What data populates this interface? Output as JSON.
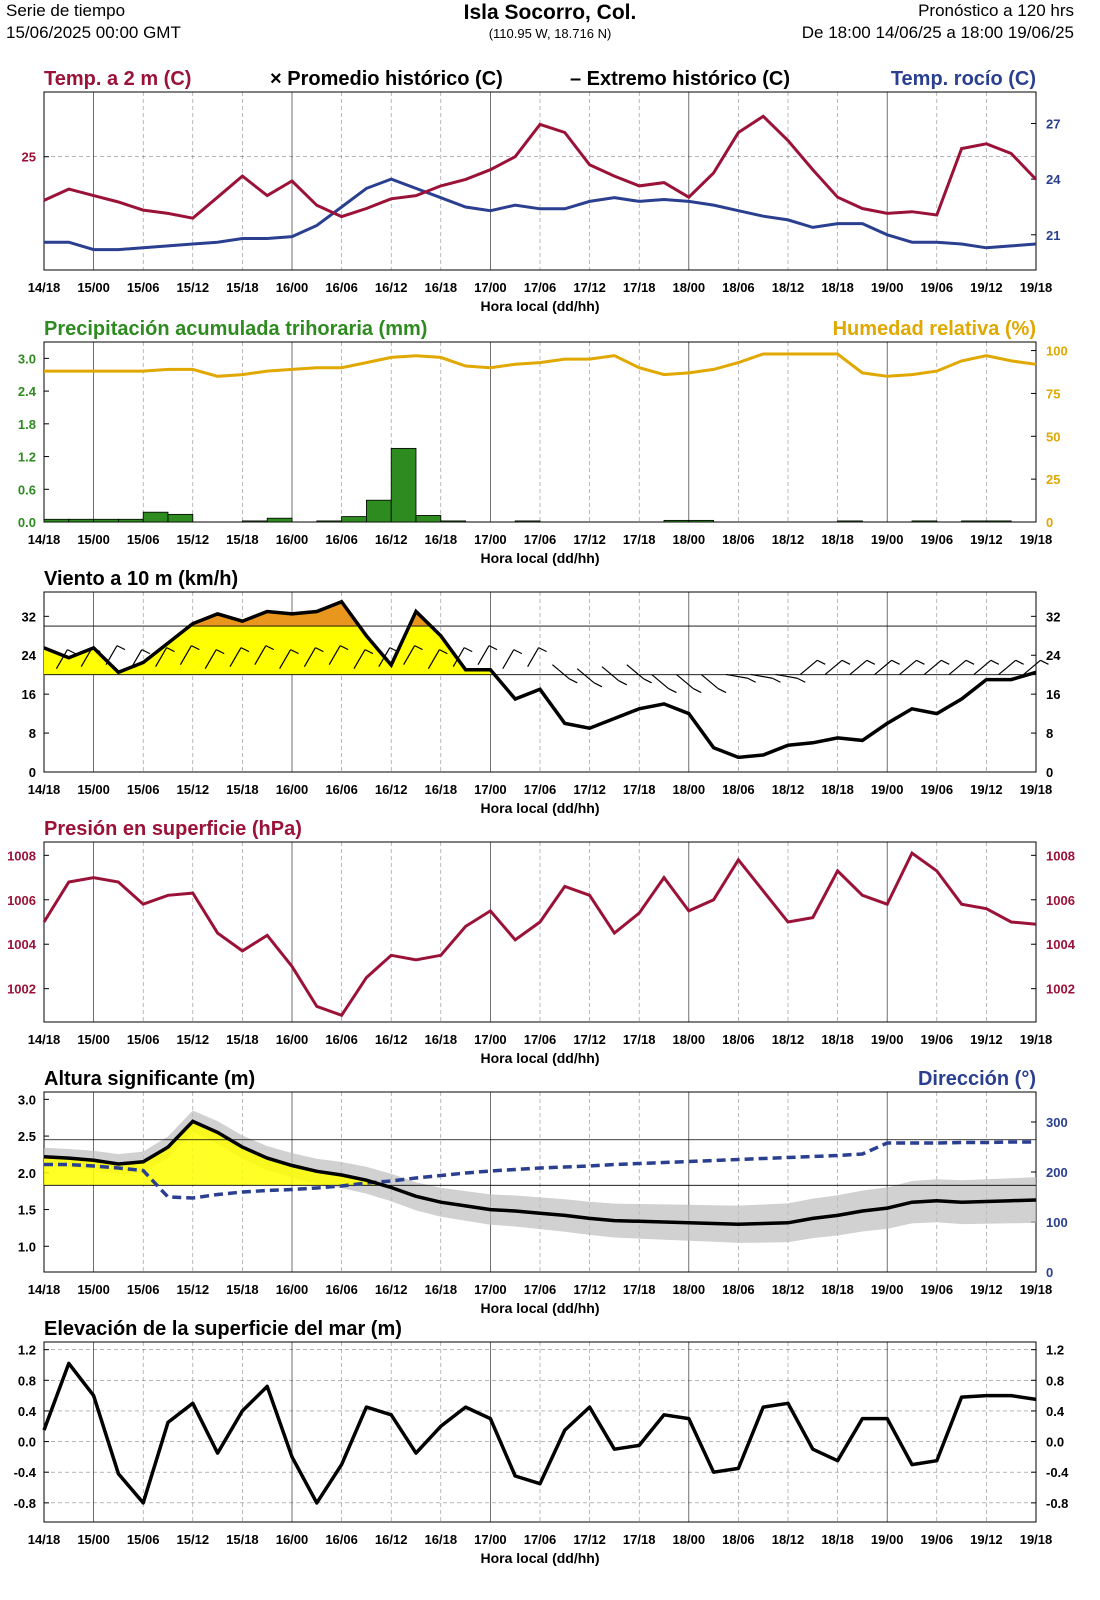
{
  "header": {
    "left_line1": "Serie de tiempo",
    "left_line2": "15/06/2025 00:00 GMT",
    "title": "Isla Socorro,  Col.",
    "coords": "(110.95 W, 18.716 N)",
    "right_line1": "Pronóstico a 120 hrs",
    "right_line2": "De 18:00 14/06/25 a 18:00 19/06/25"
  },
  "x_ticks": [
    "14/18",
    "15/00",
    "15/06",
    "15/12",
    "15/18",
    "16/00",
    "16/06",
    "16/12",
    "16/18",
    "17/00",
    "17/06",
    "17/12",
    "17/18",
    "18/00",
    "18/06",
    "18/12",
    "18/18",
    "19/00",
    "19/06",
    "19/12",
    "19/18"
  ],
  "x_label": "Hora local (dd/hh)",
  "colors": {
    "temp": "#9b1238",
    "dew": "#2a3f8f",
    "precip": "#2e8b1f",
    "rh": "#e0a800",
    "pressure": "#9b1238",
    "wave": "#000000",
    "dir": "#2a3f8f",
    "wind_fill_low": "#ffff00",
    "wind_fill_high": "#e8961e"
  },
  "chart_data": [
    {
      "id": "temp",
      "type": "line",
      "title_left": "Temp. a 2 m (C)",
      "legend_mid1": "Promedio histórico (C)",
      "legend_mid2": "Extremo histórico (C)",
      "title_right": "Temp. rocío (C)",
      "y_left_ticks": [
        "25"
      ],
      "y_right_ticks": [
        "27",
        "24",
        "21"
      ],
      "ylim": [
        18,
        29
      ],
      "x_hours": [
        0,
        3,
        6,
        9,
        12,
        15,
        18,
        21,
        24,
        27,
        30,
        33,
        36,
        39,
        42,
        45,
        48,
        51,
        54,
        57,
        60,
        63,
        66,
        69,
        72,
        75,
        78,
        81,
        84,
        87,
        90,
        93,
        96,
        99,
        102,
        105,
        108,
        111,
        114,
        117,
        120
      ],
      "series": [
        {
          "name": "Temp. a 2 m (C)",
          "values": [
            22.3,
            23.0,
            22.6,
            22.2,
            21.7,
            21.5,
            21.2,
            22.5,
            23.8,
            22.6,
            23.5,
            22.0,
            21.3,
            21.8,
            22.4,
            22.6,
            23.2,
            23.6,
            24.2,
            25.0,
            27.0,
            26.5,
            24.5,
            23.8,
            23.2,
            23.4,
            22.5,
            24.0,
            26.5,
            27.5,
            26.0,
            24.2,
            22.5,
            21.8,
            21.5,
            21.6,
            21.4,
            25.5,
            25.8,
            25.2,
            23.6
          ]
        },
        {
          "name": "Temp. rocío (C)",
          "values": [
            20.6,
            20.6,
            20.2,
            20.2,
            20.3,
            20.4,
            20.5,
            20.6,
            20.8,
            20.8,
            20.9,
            21.5,
            22.5,
            23.5,
            24.0,
            23.5,
            23.0,
            22.5,
            22.3,
            22.6,
            22.4,
            22.4,
            22.8,
            23.0,
            22.8,
            22.9,
            22.8,
            22.6,
            22.3,
            22.0,
            21.8,
            21.4,
            21.6,
            21.6,
            21.0,
            20.6,
            20.6,
            20.5,
            20.3,
            20.4,
            20.5
          ]
        }
      ]
    },
    {
      "id": "precip",
      "type": "bar",
      "title_left": "Precipitación acumulada trihoraria (mm)",
      "title_right": "Humedad relativa (%)",
      "y_left_ticks": [
        "3.0",
        "2.4",
        "1.8",
        "1.2",
        "0.6",
        "0.0"
      ],
      "y_right_ticks": [
        "100",
        "75",
        "50",
        "25",
        "0"
      ],
      "ylim": [
        0,
        3.3
      ],
      "y_right_lim": [
        0,
        100
      ],
      "bar_hours": [
        1.5,
        4.5,
        7.5,
        10.5,
        13.5,
        16.5,
        19.5,
        22.5,
        25.5,
        28.5,
        31.5,
        34.5,
        37.5,
        40.5,
        43.5,
        46.5,
        49.5,
        52.5,
        55.5,
        58.5,
        61.5,
        64.5,
        67.5,
        70.5,
        73.5,
        76.5,
        79.5,
        82.5,
        85.5,
        88.5,
        91.5,
        94.5,
        97.5,
        100.5,
        103.5,
        106.5,
        109.5,
        112.5,
        115.5,
        118.5
      ],
      "series": [
        {
          "name": "Precipitación acumulada trihoraria (mm)",
          "values": [
            0.05,
            0.05,
            0.05,
            0.05,
            0.18,
            0.14,
            0.0,
            0.0,
            0.02,
            0.07,
            0.0,
            0.02,
            0.1,
            0.4,
            1.35,
            0.12,
            0.02,
            0.0,
            0.0,
            0.02,
            0.0,
            0.0,
            0.0,
            0.0,
            0.0,
            0.03,
            0.03,
            0.0,
            0.0,
            0.0,
            0.0,
            0.0,
            0.02,
            0.0,
            0.0,
            0.02,
            0.0,
            0.02,
            0.02,
            0.0
          ]
        },
        {
          "name": "Humedad relativa (%)",
          "x_hours": [
            0,
            3,
            6,
            9,
            12,
            15,
            18,
            21,
            24,
            27,
            30,
            33,
            36,
            39,
            42,
            45,
            48,
            51,
            54,
            57,
            60,
            63,
            66,
            69,
            72,
            75,
            78,
            81,
            84,
            87,
            90,
            93,
            96,
            99,
            102,
            105,
            108,
            111,
            114,
            117,
            120
          ],
          "values": [
            88,
            88,
            88,
            88,
            88,
            89,
            89,
            85,
            86,
            88,
            89,
            90,
            90,
            93,
            96,
            97,
            96,
            91,
            90,
            92,
            93,
            95,
            95,
            97,
            90,
            86,
            87,
            89,
            93,
            98,
            98,
            98,
            98,
            87,
            85,
            86,
            88,
            94,
            97,
            94,
            92
          ]
        }
      ]
    },
    {
      "id": "wind",
      "type": "line",
      "title_left": "Viento a 10 m (km/h)",
      "y_ticks": [
        "32",
        "24",
        "16",
        "8",
        "0"
      ],
      "ylim": [
        0,
        37
      ],
      "thresholds": [
        20,
        30
      ],
      "x_hours": [
        0,
        3,
        6,
        9,
        12,
        15,
        18,
        21,
        24,
        27,
        30,
        33,
        36,
        39,
        42,
        45,
        48,
        51,
        54,
        57,
        60,
        63,
        66,
        69,
        72,
        75,
        78,
        81,
        84,
        87,
        90,
        93,
        96,
        99,
        102,
        105,
        108,
        111,
        114,
        117,
        120
      ],
      "series": [
        {
          "name": "Viento a 10 m (km/h)",
          "values": [
            25.5,
            23.5,
            25.5,
            20.5,
            22.5,
            26.5,
            30.5,
            32.5,
            31,
            33,
            32.5,
            33,
            35,
            28,
            22,
            33,
            28,
            21,
            21,
            15,
            17,
            10,
            9,
            11,
            13,
            14,
            12,
            5,
            3,
            3.5,
            5.5,
            6,
            7,
            6.5,
            10,
            13,
            12,
            15,
            19,
            19,
            20.5
          ]
        }
      ]
    },
    {
      "id": "pressure",
      "type": "line",
      "title_left": "Presión en superficie (hPa)",
      "y_ticks": [
        "1008",
        "1006",
        "1004",
        "1002"
      ],
      "ylim": [
        1000.5,
        1008.6
      ],
      "x_hours": [
        0,
        3,
        6,
        9,
        12,
        15,
        18,
        21,
        24,
        27,
        30,
        33,
        36,
        39,
        42,
        45,
        48,
        51,
        54,
        57,
        60,
        63,
        66,
        69,
        72,
        75,
        78,
        81,
        84,
        87,
        90,
        93,
        96,
        99,
        102,
        105,
        108,
        111,
        114,
        117,
        120
      ],
      "series": [
        {
          "name": "Presión en superficie (hPa)",
          "values": [
            1005,
            1006.8,
            1007,
            1006.8,
            1005.8,
            1006.2,
            1006.3,
            1004.5,
            1003.7,
            1004.4,
            1003,
            1001.2,
            1000.8,
            1002.5,
            1003.5,
            1003.3,
            1003.5,
            1004.8,
            1005.5,
            1004.2,
            1005,
            1006.6,
            1006.2,
            1004.5,
            1005.4,
            1007,
            1005.5,
            1006,
            1007.8,
            1006.4,
            1005,
            1005.2,
            1007.3,
            1006.2,
            1005.8,
            1008.1,
            1007.3,
            1005.8,
            1005.6,
            1005,
            1004.9
          ]
        }
      ]
    },
    {
      "id": "wave",
      "type": "area",
      "title_left": "Altura significante (m)",
      "title_right": "Dirección (°)",
      "y_left_ticks": [
        "3.0",
        "2.5",
        "2.0",
        "1.5",
        "1.0"
      ],
      "y_right_ticks": [
        "300",
        "200",
        "100",
        "0"
      ],
      "ylim": [
        0.65,
        3.1
      ],
      "y_right_lim": [
        0,
        360
      ],
      "thresholds": [
        1.83,
        2.45
      ],
      "x_hours": [
        0,
        3,
        6,
        9,
        12,
        15,
        18,
        21,
        24,
        27,
        30,
        33,
        36,
        39,
        42,
        45,
        48,
        51,
        54,
        57,
        60,
        63,
        66,
        69,
        72,
        75,
        78,
        81,
        84,
        87,
        90,
        93,
        96,
        99,
        102,
        105,
        108,
        111,
        114,
        117,
        120
      ],
      "series": [
        {
          "name": "Altura significante (m)",
          "values": [
            2.22,
            2.2,
            2.17,
            2.12,
            2.15,
            2.35,
            2.7,
            2.55,
            2.35,
            2.2,
            2.1,
            2.02,
            1.97,
            1.9,
            1.8,
            1.68,
            1.6,
            1.55,
            1.5,
            1.48,
            1.45,
            1.42,
            1.38,
            1.35,
            1.34,
            1.33,
            1.32,
            1.31,
            1.3,
            1.31,
            1.32,
            1.38,
            1.42,
            1.48,
            1.52,
            1.6,
            1.62,
            1.6,
            1.61,
            1.62,
            1.63
          ]
        },
        {
          "name": "Dirección (°)",
          "values": [
            215,
            215,
            212,
            208,
            203,
            150,
            148,
            155,
            160,
            163,
            165,
            168,
            172,
            178,
            182,
            188,
            193,
            198,
            202,
            205,
            208,
            210,
            212,
            215,
            217,
            219,
            221,
            223,
            225,
            227,
            229,
            231,
            233,
            236,
            258,
            258,
            258,
            259,
            259,
            260,
            260
          ]
        }
      ]
    },
    {
      "id": "ssh",
      "type": "line",
      "title_left": "Elevación de la superficie del mar (m)",
      "y_ticks": [
        "1.2",
        "0.8",
        "0.4",
        "0.0",
        "-0.4",
        "-0.8"
      ],
      "ylim": [
        -1.05,
        1.3
      ],
      "x_hours": [
        0,
        3,
        6,
        9,
        12,
        15,
        18,
        21,
        24,
        27,
        30,
        33,
        36,
        39,
        42,
        45,
        48,
        51,
        54,
        57,
        60,
        63,
        66,
        69,
        72,
        75,
        78,
        81,
        84,
        87,
        90,
        93,
        96,
        99,
        102,
        105,
        108,
        111,
        114,
        117,
        120
      ],
      "series": [
        {
          "name": "Elevación de la superficie del mar (m)",
          "values": [
            0.15,
            1.02,
            0.6,
            -0.42,
            -0.8,
            0.25,
            0.5,
            -0.15,
            0.4,
            0.72,
            -0.2,
            -0.8,
            -0.3,
            0.45,
            0.35,
            -0.15,
            0.2,
            0.45,
            0.3,
            -0.45,
            -0.55,
            0.15,
            0.45,
            -0.1,
            -0.05,
            0.35,
            0.3,
            -0.4,
            -0.35,
            0.45,
            0.5,
            -0.1,
            -0.25,
            0.3,
            0.3,
            -0.3,
            -0.25,
            0.58,
            0.6,
            0.6,
            0.55
          ]
        }
      ]
    }
  ]
}
